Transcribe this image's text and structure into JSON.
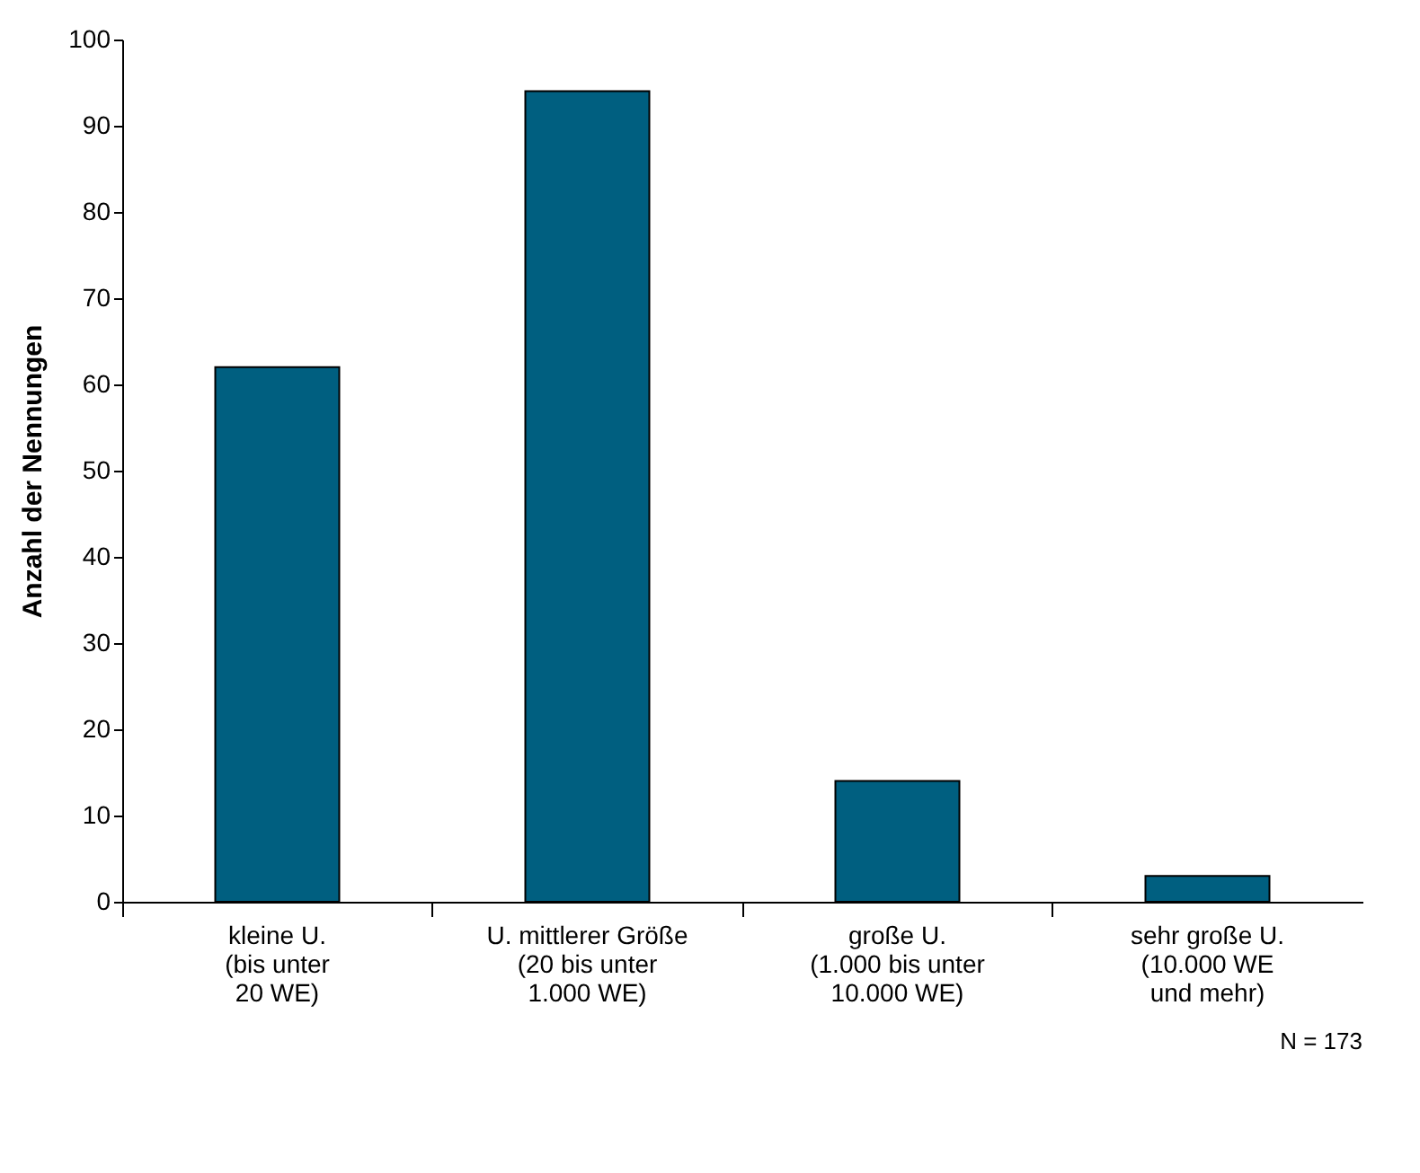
{
  "chart_data": {
    "type": "bar",
    "ylabel": "Anzahl der Nennungen",
    "categories": [
      "kleine U.\n(bis unter\n20 WE)",
      "U. mittlerer Größe\n(20 bis unter\n1.000 WE)",
      "große U.\n(1.000 bis unter\n10.000 WE)",
      "sehr große U.\n(10.000 WE\nund mehr)"
    ],
    "values": [
      62,
      94,
      14,
      3
    ],
    "color": "#005f80",
    "ylim": [
      0,
      100
    ],
    "yticks": [
      0,
      10,
      20,
      30,
      40,
      50,
      60,
      70,
      80,
      90,
      100
    ],
    "grid": false,
    "annotations": [
      "N = 173"
    ]
  }
}
